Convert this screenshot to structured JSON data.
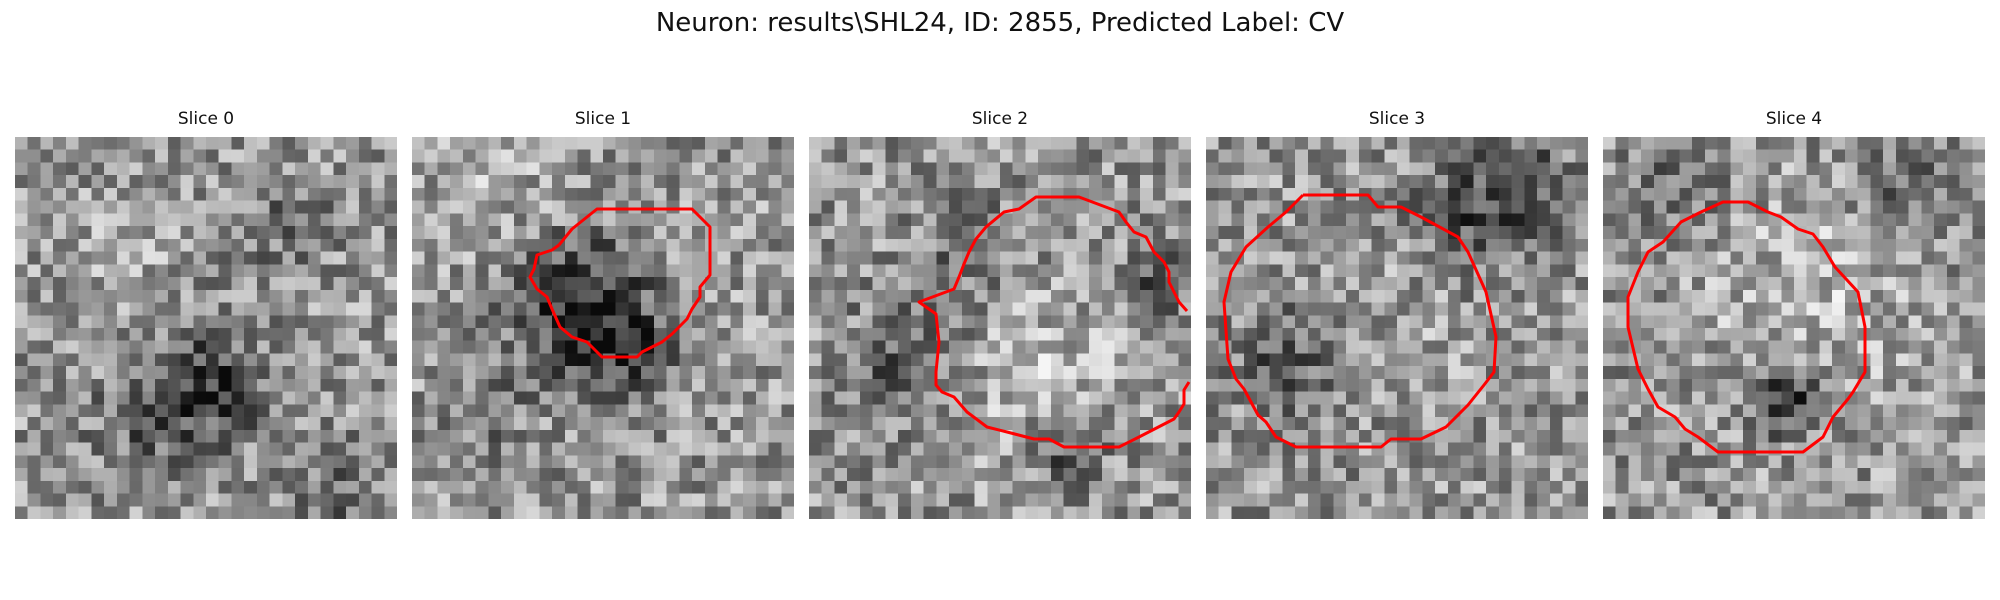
{
  "figure": {
    "title": "Neuron: results\\SHL24, ID: 2855, Predicted Label: CV",
    "contour_color": "#ff0000"
  },
  "panels": [
    {
      "title": "Slice 0",
      "has_contour": false
    },
    {
      "title": "Slice 1",
      "has_contour": true
    },
    {
      "title": "Slice 2",
      "has_contour": true
    },
    {
      "title": "Slice 3",
      "has_contour": true
    },
    {
      "title": "Slice 4",
      "has_contour": true
    }
  ]
}
